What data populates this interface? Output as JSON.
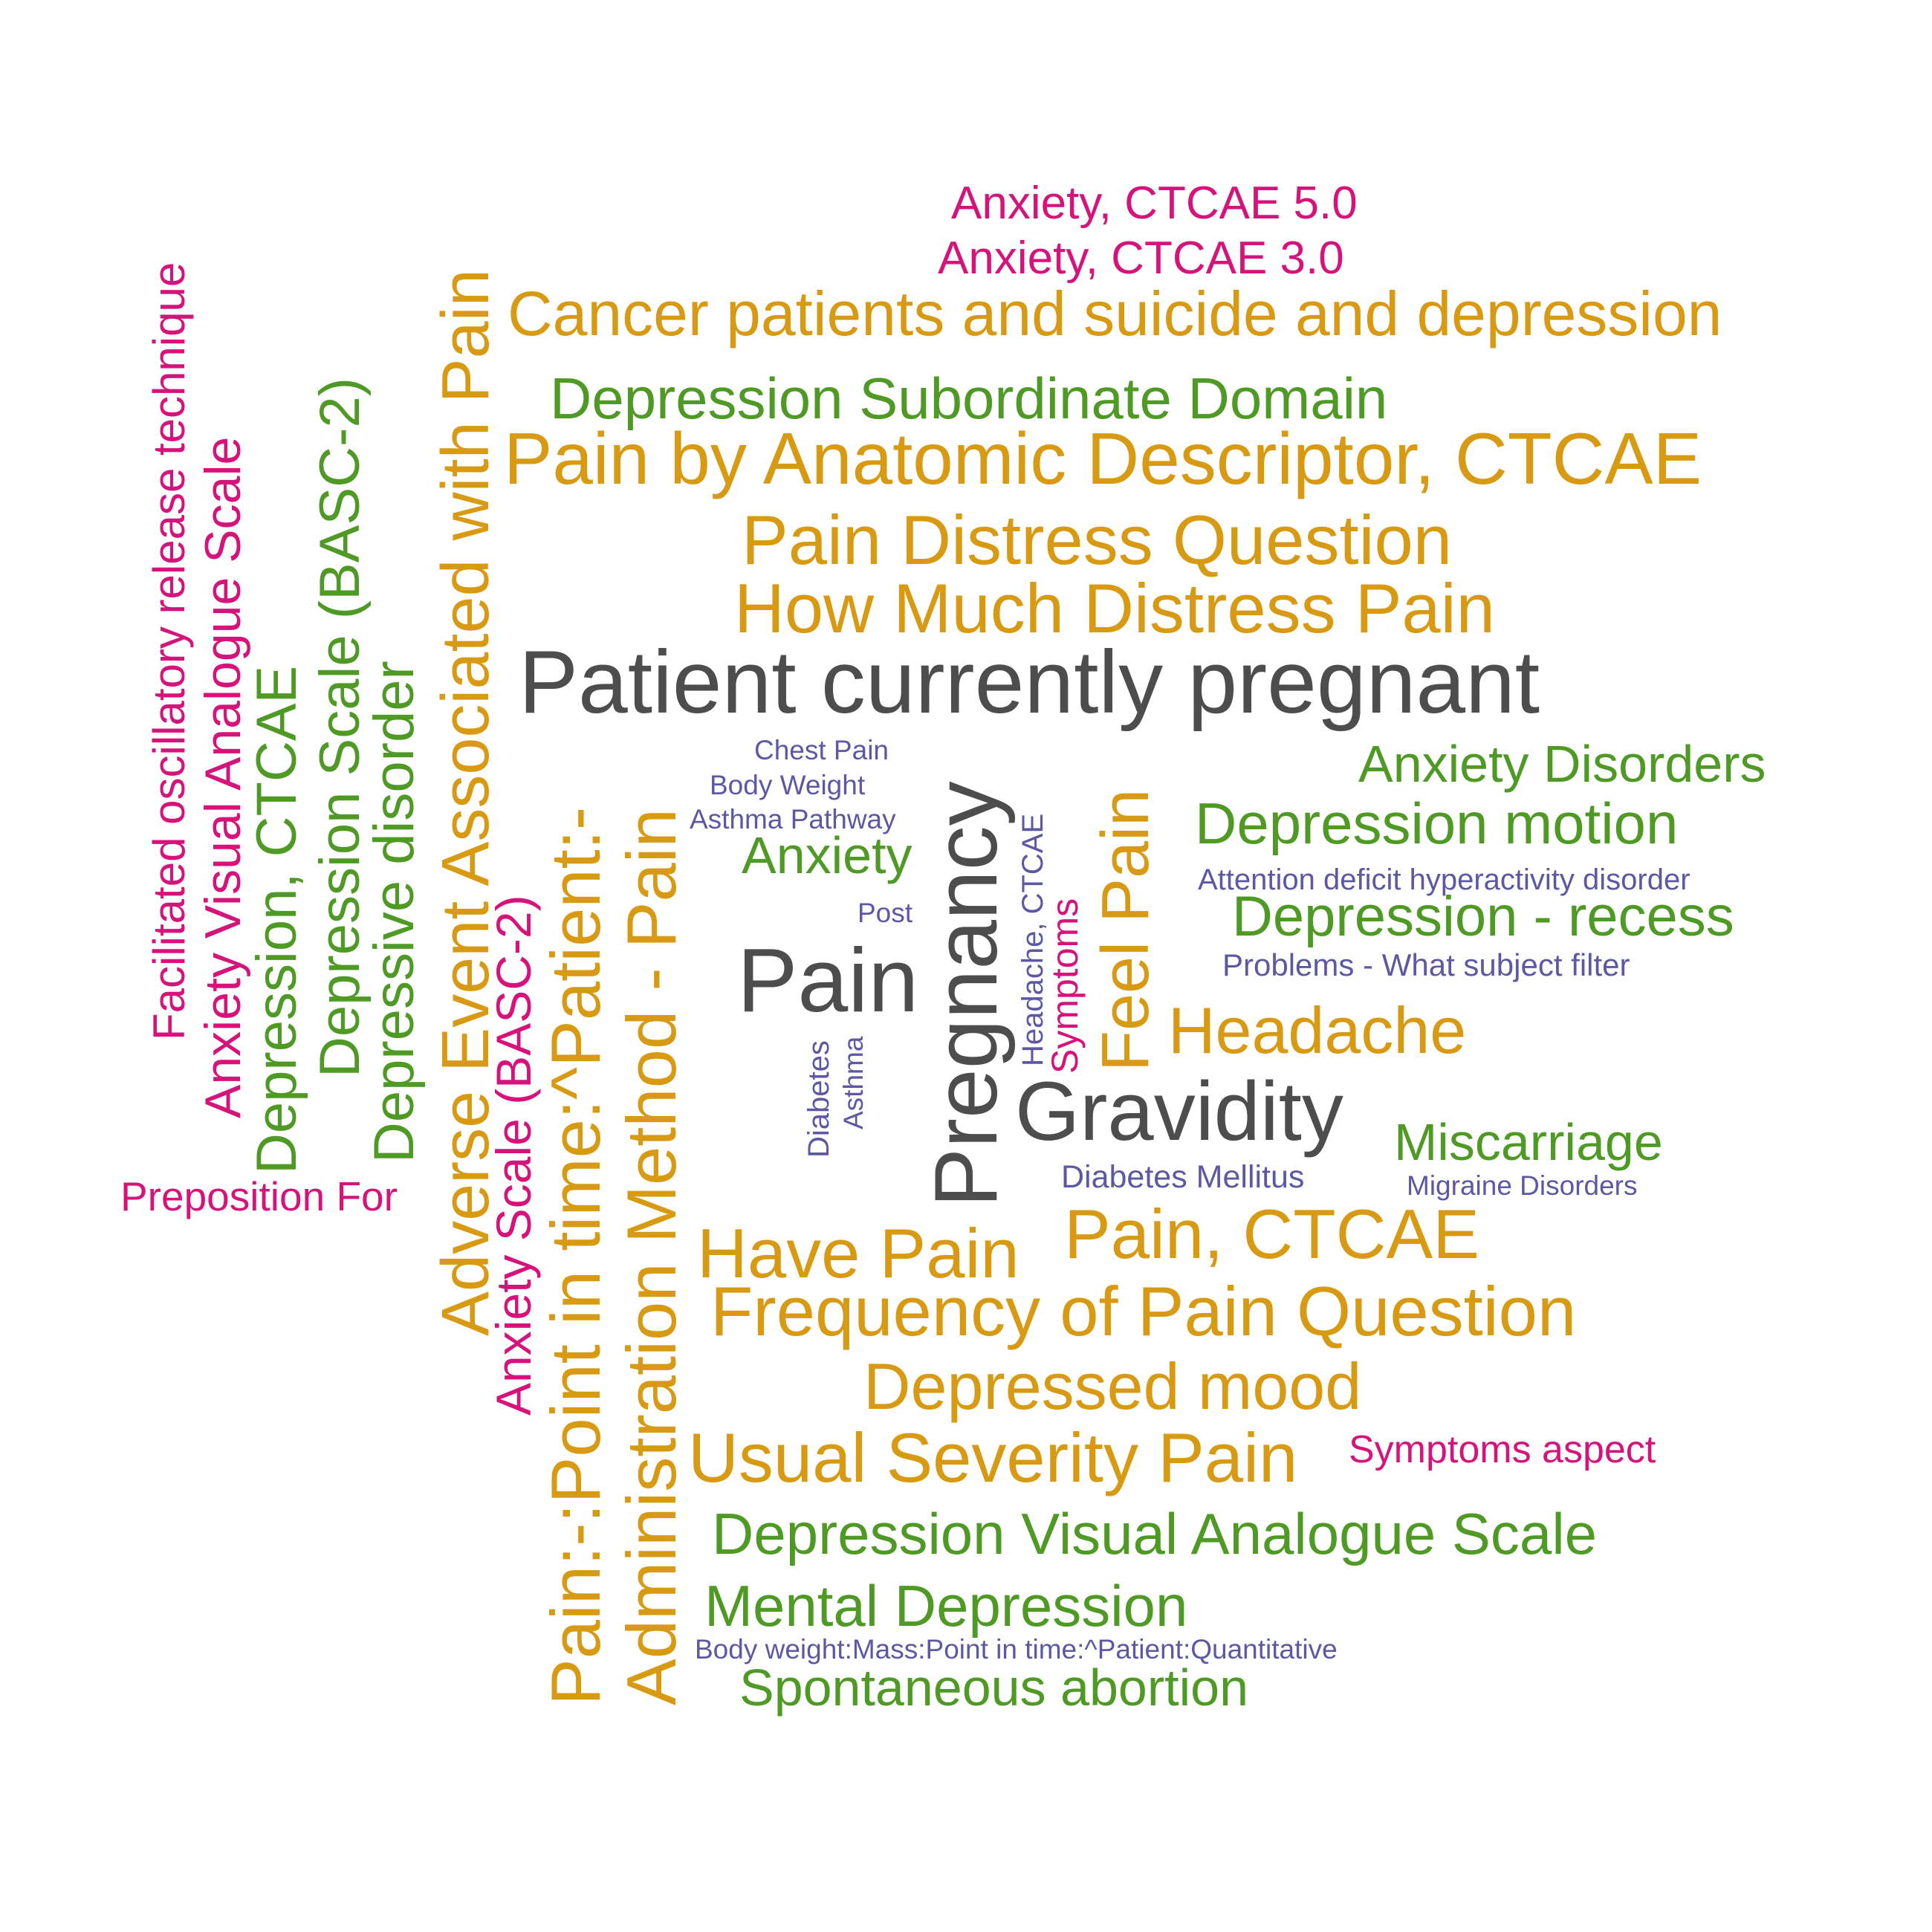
{
  "colors": {
    "orange": "#D99A13",
    "green": "#4F9A24",
    "magenta": "#D6137B",
    "purple": "#5E58A4",
    "gray": "#4D4D4D"
  },
  "words": {
    "anxiety_ctcae_5": "Anxiety, CTCAE 5.0",
    "anxiety_ctcae_3": "Anxiety, CTCAE 3.0",
    "cancer_patients": "Cancer patients and suicide and depression",
    "depression_subordinate": "Depression Subordinate Domain",
    "pain_anatomic": "Pain by Anatomic Descriptor, CTCAE",
    "pain_distress_question": "Pain Distress Question",
    "how_much_distress": "How Much Distress Pain",
    "patient_pregnant": "Patient currently pregnant",
    "chest_pain": "Chest Pain",
    "body_weight": "Body Weight",
    "asthma_pathway": "Asthma Pathway",
    "anxiety": "Anxiety",
    "post": "Post",
    "pain": "Pain",
    "anxiety_disorders": "Anxiety Disorders",
    "depression_motion": "Depression motion",
    "adhd": "Attention deficit hyperactivity disorder",
    "depression_recess": "Depression - recess",
    "problems_filter": "Problems - What subject filter",
    "headache": "Headache",
    "gravidity": "Gravidity",
    "miscarriage": "Miscarriage",
    "diabetes_mellitus": "Diabetes Mellitus",
    "migraine": "Migraine Disorders",
    "pain_ctcae": "Pain, CTCAE",
    "have_pain": "Have Pain",
    "frequency_pain": "Frequency of Pain Question",
    "depressed_mood": "Depressed mood",
    "usual_severity": "Usual Severity Pain",
    "symptoms_aspect": "Symptoms aspect",
    "depression_vas": "Depression Visual Analogue Scale",
    "mental_depression": "Mental Depression",
    "body_weight_mass": "Body weight:Mass:Point in time:^Patient:Quantitative",
    "spontaneous_abortion": "Spontaneous abortion",
    "preposition_for": "Preposition For",
    "facilitated": "Facilitated oscillatory release technique",
    "anxiety_vas": "Anxiety Visual Analogue Scale",
    "depression_ctcae": "Depression, CTCAE",
    "depression_scale_basc": "Depression Scale (BASC-2)",
    "depressive_disorder": "Depressive disorder",
    "adverse_event_pain": "Adverse Event Associated with Pain",
    "anxiety_scale_basc": "Anxiety Scale (BASC-2)",
    "pain_point_in_time": "Pain:-:Point in time:^Patient:-",
    "administration_method": "Administration Method - Pain",
    "diabetes": "Diabetes",
    "asthma": "Asthma",
    "pregnancy": "Pregnancy",
    "headache_ctcae": "Headache, CTCAE",
    "symptoms": "Symptoms",
    "feel_pain": "Feel Pain"
  }
}
